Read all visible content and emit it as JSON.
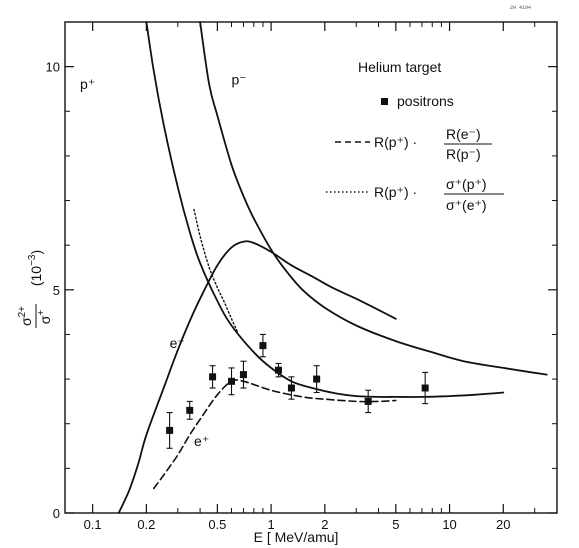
{
  "chart_data": {
    "type": "line",
    "stamp": "2H 4194",
    "title": "",
    "xlabel": "E [ MeV/amu]",
    "ylabel_main": "σ",
    "ylabel_num_sup": "2+",
    "ylabel_den_sup": "+",
    "ylabel_unit": "(10",
    "ylabel_unit_exp": "−3",
    "ylabel_unit_close": ")",
    "x_scale": "log",
    "xlim": [
      0.07,
      40
    ],
    "ylim": [
      0,
      11
    ],
    "x_ticks": [
      {
        "value": 0.1,
        "label": "0.1"
      },
      {
        "value": 0.2,
        "label": "0.2"
      },
      {
        "value": 0.5,
        "label": "0.5"
      },
      {
        "value": 1,
        "label": "1"
      },
      {
        "value": 2,
        "label": "2"
      },
      {
        "value": 5,
        "label": "5"
      },
      {
        "value": 10,
        "label": "10"
      },
      {
        "value": 20,
        "label": "20"
      }
    ],
    "x_minor_ticks": [
      0.3,
      0.4,
      0.6,
      0.7,
      0.8,
      0.9,
      3,
      4,
      6,
      7,
      8,
      9,
      30
    ],
    "y_ticks": [
      {
        "value": 0,
        "label": "0"
      },
      {
        "value": 5,
        "label": "5"
      },
      {
        "value": 10,
        "label": "10"
      }
    ],
    "y_minor_ticks": [
      1,
      2,
      3,
      4,
      6,
      7,
      8,
      9,
      11
    ],
    "grid": false,
    "legend_title": "Helium target",
    "legend": {
      "positrons": "positrons",
      "dashed": "R(p⁺) · ",
      "dashed_num": "R(e⁻)",
      "dashed_den": "R(p⁻)",
      "dotted": "R(p⁺) · ",
      "dotted_num": "σ⁺(p⁺)",
      "dotted_den": "σ⁺(e⁺)"
    },
    "curve_labels": [
      {
        "text": "p⁺",
        "x": 0.085,
        "y": 9.5
      },
      {
        "text": "p⁻",
        "x": 0.6,
        "y": 9.6
      },
      {
        "text": "e⁻",
        "x": 0.27,
        "y": 3.7
      },
      {
        "text": "e⁺",
        "x": 0.37,
        "y": 1.5
      }
    ],
    "series": [
      {
        "name": "p⁺",
        "style": "solid",
        "x": [
          0.2,
          0.22,
          0.25,
          0.3,
          0.35,
          0.4,
          0.5,
          0.6,
          0.8,
          1.0,
          1.3,
          1.7,
          2.3,
          3,
          4,
          5,
          7,
          10,
          14,
          20
        ],
        "y": [
          11.0,
          9.9,
          8.7,
          7.3,
          6.3,
          5.6,
          4.75,
          4.2,
          3.6,
          3.25,
          2.95,
          2.8,
          2.68,
          2.62,
          2.6,
          2.6,
          2.6,
          2.62,
          2.65,
          2.7
        ]
      },
      {
        "name": "p⁻",
        "style": "solid",
        "x": [
          0.4,
          0.45,
          0.5,
          0.6,
          0.7,
          0.8,
          1.0,
          1.2,
          1.5,
          2,
          3,
          5,
          8,
          12,
          20,
          35
        ],
        "y": [
          11.0,
          9.6,
          8.9,
          7.8,
          7.1,
          6.6,
          5.9,
          5.45,
          5.0,
          4.6,
          4.2,
          3.85,
          3.6,
          3.4,
          3.25,
          3.1
        ]
      },
      {
        "name": "e⁻",
        "style": "solid",
        "x": [
          0.14,
          0.16,
          0.18,
          0.2,
          0.25,
          0.3,
          0.35,
          0.4,
          0.5,
          0.6,
          0.7,
          0.8,
          1.0,
          1.3,
          1.7,
          2.2,
          3,
          4,
          5
        ],
        "y": [
          0.0,
          0.5,
          1.1,
          1.75,
          2.8,
          3.65,
          4.3,
          4.8,
          5.55,
          5.95,
          6.08,
          6.05,
          5.85,
          5.55,
          5.3,
          5.05,
          4.8,
          4.55,
          4.35
        ]
      },
      {
        "name": "R(p⁺)·R(e⁻)/R(p⁻)",
        "style": "dashed",
        "x": [
          0.22,
          0.25,
          0.3,
          0.35,
          0.4,
          0.5,
          0.6,
          0.7,
          1.0,
          1.5,
          2,
          3,
          4,
          5
        ],
        "y": [
          0.55,
          0.85,
          1.3,
          1.75,
          2.1,
          2.65,
          2.95,
          2.95,
          2.75,
          2.6,
          2.55,
          2.5,
          2.5,
          2.52
        ]
      },
      {
        "name": "R(p⁺)·σ⁺(p⁺)/σ⁺(e⁺)",
        "style": "dotted",
        "x": [
          0.37,
          0.4,
          0.45,
          0.5,
          0.55,
          0.6,
          0.65
        ],
        "y": [
          6.8,
          6.2,
          5.5,
          5.05,
          4.7,
          4.35,
          4.05
        ]
      }
    ],
    "positrons": [
      {
        "x": 0.27,
        "y": 1.85,
        "err": 0.4
      },
      {
        "x": 0.35,
        "y": 2.3,
        "err": 0.2
      },
      {
        "x": 0.47,
        "y": 3.05,
        "err": 0.25
      },
      {
        "x": 0.6,
        "y": 2.95,
        "err": 0.3
      },
      {
        "x": 0.7,
        "y": 3.1,
        "err": 0.3
      },
      {
        "x": 0.9,
        "y": 3.75,
        "err": 0.25
      },
      {
        "x": 1.1,
        "y": 3.2,
        "err": 0.15
      },
      {
        "x": 1.3,
        "y": 2.8,
        "err": 0.25
      },
      {
        "x": 1.8,
        "y": 3.0,
        "err": 0.3
      },
      {
        "x": 3.5,
        "y": 2.5,
        "err": 0.25
      },
      {
        "x": 7.3,
        "y": 2.8,
        "err": 0.35
      }
    ]
  }
}
